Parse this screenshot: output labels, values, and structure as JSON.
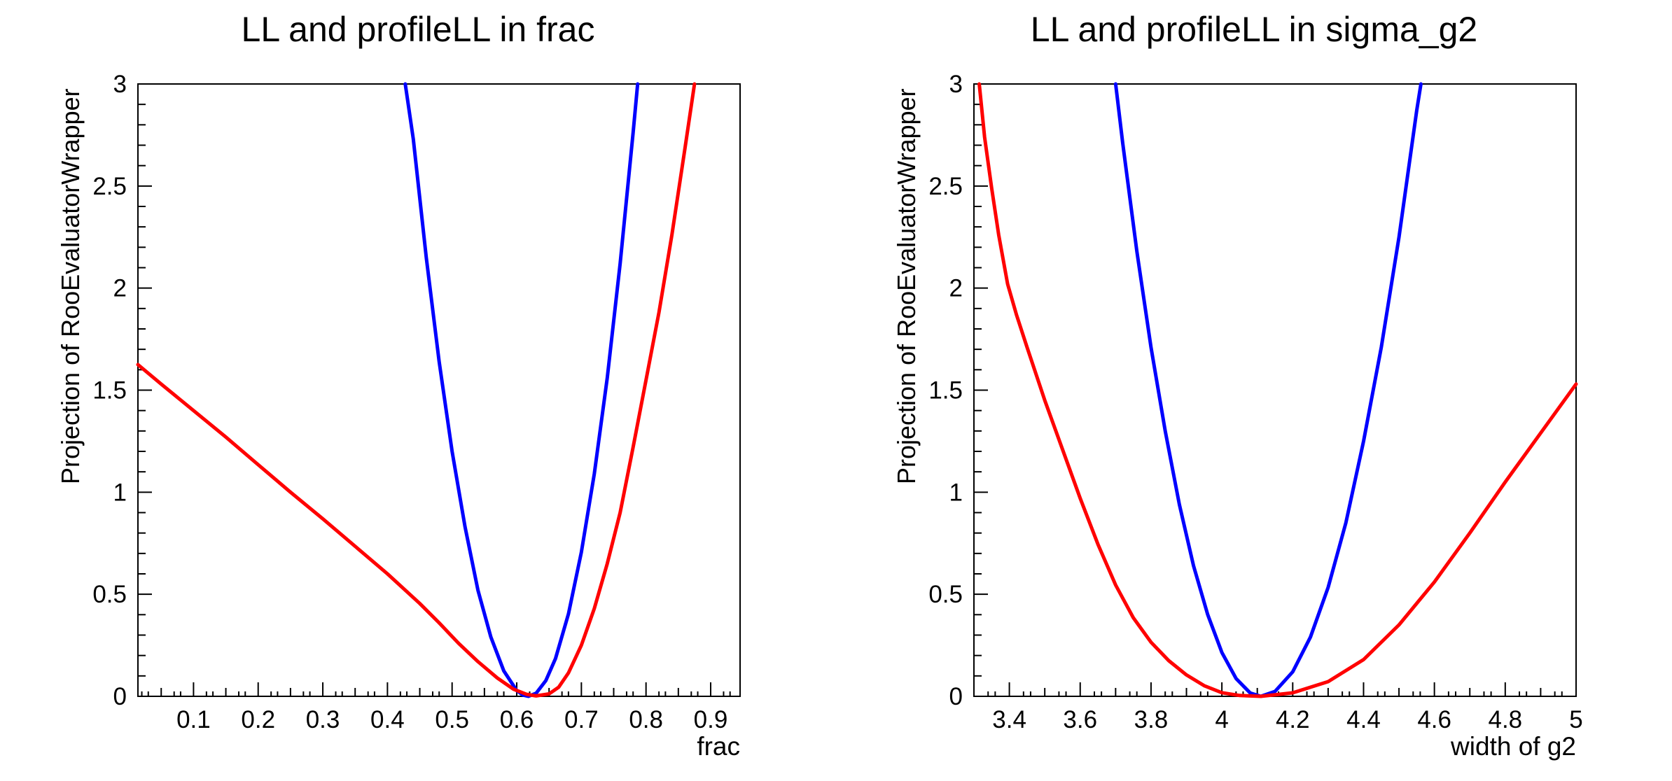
{
  "canvas": {
    "background": "#ffffff",
    "frame_color": "#000000"
  },
  "chart_data": [
    {
      "type": "line",
      "title": "LL and profileLL in frac",
      "xlabel": "frac",
      "ylabel": "Projection of RooEvaluatorWrapper",
      "xlim": [
        0.014,
        0.9455
      ],
      "ylim": [
        0,
        3
      ],
      "grid": false,
      "legend": "none",
      "x_axis": {
        "major_values": [
          0.1,
          0.2,
          0.3,
          0.4,
          0.5,
          0.6,
          0.7,
          0.8,
          0.9
        ],
        "major_labels": [
          "0.1",
          "0.2",
          "0.3",
          "0.4",
          "0.5",
          "0.6",
          "0.7",
          "0.8",
          "0.9"
        ],
        "mid_step": 0.05,
        "minor_step": 0.01
      },
      "y_axis": {
        "major_values": [
          0,
          0.5,
          1,
          1.5,
          2,
          2.5,
          3
        ],
        "major_labels": [
          "0",
          "0.5",
          "1",
          "1.5",
          "2",
          "2.5",
          "3"
        ],
        "minor_step": 0.1
      },
      "series": [
        {
          "name": "LL",
          "color": "#0000ff",
          "line_width": 5,
          "points": [
            [
              0.4275,
              3.0
            ],
            [
              0.44,
              2.73
            ],
            [
              0.46,
              2.15
            ],
            [
              0.48,
              1.64
            ],
            [
              0.5,
              1.2
            ],
            [
              0.52,
              0.83
            ],
            [
              0.54,
              0.52
            ],
            [
              0.56,
              0.29
            ],
            [
              0.58,
              0.124
            ],
            [
              0.6,
              0.028
            ],
            [
              0.61,
              0.006
            ],
            [
              0.618,
              0.0
            ],
            [
              0.63,
              0.015
            ],
            [
              0.645,
              0.077
            ],
            [
              0.66,
              0.185
            ],
            [
              0.68,
              0.404
            ],
            [
              0.7,
              0.706
            ],
            [
              0.72,
              1.09
            ],
            [
              0.74,
              1.56
            ],
            [
              0.76,
              2.12
            ],
            [
              0.78,
              2.76
            ],
            [
              0.787,
              3.0
            ]
          ]
        },
        {
          "name": "profileLL",
          "color": "#ff0000",
          "line_width": 5,
          "points": [
            [
              0.014,
              1.625
            ],
            [
              0.05,
              1.53
            ],
            [
              0.1,
              1.4
            ],
            [
              0.15,
              1.27
            ],
            [
              0.2,
              1.135
            ],
            [
              0.25,
              1.0
            ],
            [
              0.3,
              0.87
            ],
            [
              0.35,
              0.735
            ],
            [
              0.4,
              0.6
            ],
            [
              0.45,
              0.455
            ],
            [
              0.48,
              0.36
            ],
            [
              0.51,
              0.26
            ],
            [
              0.54,
              0.17
            ],
            [
              0.57,
              0.09
            ],
            [
              0.595,
              0.035
            ],
            [
              0.615,
              0.01
            ],
            [
              0.63,
              0.002
            ],
            [
              0.65,
              0.012
            ],
            [
              0.665,
              0.045
            ],
            [
              0.68,
              0.115
            ],
            [
              0.7,
              0.25
            ],
            [
              0.72,
              0.43
            ],
            [
              0.74,
              0.65
            ],
            [
              0.76,
              0.9
            ],
            [
              0.78,
              1.22
            ],
            [
              0.8,
              1.55
            ],
            [
              0.82,
              1.88
            ],
            [
              0.84,
              2.26
            ],
            [
              0.86,
              2.68
            ],
            [
              0.875,
              3.0
            ]
          ]
        }
      ]
    },
    {
      "type": "line",
      "title": "LL and profileLL in sigma_g2",
      "xlabel": "width of g2",
      "ylabel": "Projection of RooEvaluatorWrapper",
      "xlim": [
        3.3,
        5.0
      ],
      "ylim": [
        0,
        3
      ],
      "grid": false,
      "legend": "none",
      "x_axis": {
        "major_values": [
          3.4,
          3.6,
          3.8,
          4.0,
          4.2,
          4.4,
          4.6,
          4.8,
          5.0
        ],
        "major_labels": [
          "3.4",
          "3.6",
          "3.8",
          "4",
          "4.2",
          "4.4",
          "4.6",
          "4.8",
          "5"
        ],
        "mid_step": 0.1,
        "minor_step": 0.02
      },
      "y_axis": {
        "major_values": [
          0,
          0.5,
          1,
          1.5,
          2,
          2.5,
          3
        ],
        "major_labels": [
          "0",
          "0.5",
          "1",
          "1.5",
          "2",
          "2.5",
          "3"
        ],
        "minor_step": 0.1
      },
      "series": [
        {
          "name": "LL",
          "color": "#0000ff",
          "line_width": 5,
          "points": [
            [
              3.7,
              3.0
            ],
            [
              3.72,
              2.71
            ],
            [
              3.76,
              2.18
            ],
            [
              3.8,
              1.71
            ],
            [
              3.84,
              1.3
            ],
            [
              3.88,
              0.94
            ],
            [
              3.92,
              0.64
            ],
            [
              3.96,
              0.4
            ],
            [
              4.0,
              0.215
            ],
            [
              4.04,
              0.087
            ],
            [
              4.08,
              0.016
            ],
            [
              4.11,
              0.0
            ],
            [
              4.15,
              0.024
            ],
            [
              4.2,
              0.12
            ],
            [
              4.25,
              0.29
            ],
            [
              4.3,
              0.534
            ],
            [
              4.35,
              0.85
            ],
            [
              4.4,
              1.25
            ],
            [
              4.45,
              1.71
            ],
            [
              4.5,
              2.25
            ],
            [
              4.55,
              2.87
            ],
            [
              4.562,
              3.0
            ]
          ]
        },
        {
          "name": "profileLL",
          "color": "#ff0000",
          "line_width": 5,
          "points": [
            [
              3.315,
              3.0
            ],
            [
              3.33,
              2.74
            ],
            [
              3.35,
              2.49
            ],
            [
              3.37,
              2.26
            ],
            [
              3.395,
              2.02
            ],
            [
              3.42,
              1.87
            ],
            [
              3.45,
              1.71
            ],
            [
              3.5,
              1.45
            ],
            [
              3.55,
              1.21
            ],
            [
              3.6,
              0.97
            ],
            [
              3.65,
              0.745
            ],
            [
              3.7,
              0.545
            ],
            [
              3.75,
              0.385
            ],
            [
              3.8,
              0.265
            ],
            [
              3.85,
              0.175
            ],
            [
              3.9,
              0.105
            ],
            [
              3.95,
              0.052
            ],
            [
              4.0,
              0.018
            ],
            [
              4.05,
              0.004
            ],
            [
              4.11,
              0.0
            ],
            [
              4.2,
              0.017
            ],
            [
              4.3,
              0.072
            ],
            [
              4.4,
              0.18
            ],
            [
              4.5,
              0.35
            ],
            [
              4.6,
              0.56
            ],
            [
              4.7,
              0.8
            ],
            [
              4.8,
              1.05
            ],
            [
              4.9,
              1.29
            ],
            [
              5.0,
              1.53
            ]
          ]
        }
      ]
    }
  ]
}
